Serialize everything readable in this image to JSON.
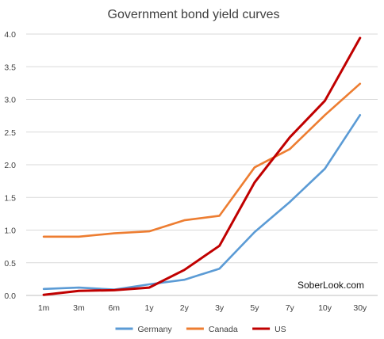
{
  "chart_data": {
    "type": "line",
    "title": "Government bond yield curves",
    "watermark": "SoberLook.com",
    "categories": [
      "1m",
      "3m",
      "6m",
      "1y",
      "2y",
      "3y",
      "5y",
      "7y",
      "10y",
      "30y"
    ],
    "ylim": [
      0.0,
      4.0
    ],
    "yticks": [
      "0.0",
      "0.5",
      "1.0",
      "1.5",
      "2.0",
      "2.5",
      "3.0",
      "3.5",
      "4.0"
    ],
    "grid": "horizontal",
    "legend": "bottom",
    "series": [
      {
        "name": "Germany",
        "color": "#5b9bd5",
        "values": [
          0.1,
          0.12,
          0.09,
          0.17,
          0.24,
          0.41,
          0.97,
          1.43,
          1.94,
          2.76
        ]
      },
      {
        "name": "Canada",
        "color": "#ed7d31",
        "values": [
          0.9,
          0.9,
          0.95,
          0.98,
          1.15,
          1.22,
          1.96,
          2.24,
          2.76,
          3.24
        ]
      },
      {
        "name": "US",
        "color": "#c00000",
        "values": [
          0.01,
          0.07,
          0.08,
          0.12,
          0.39,
          0.76,
          1.73,
          2.42,
          2.98,
          3.94
        ]
      }
    ]
  }
}
